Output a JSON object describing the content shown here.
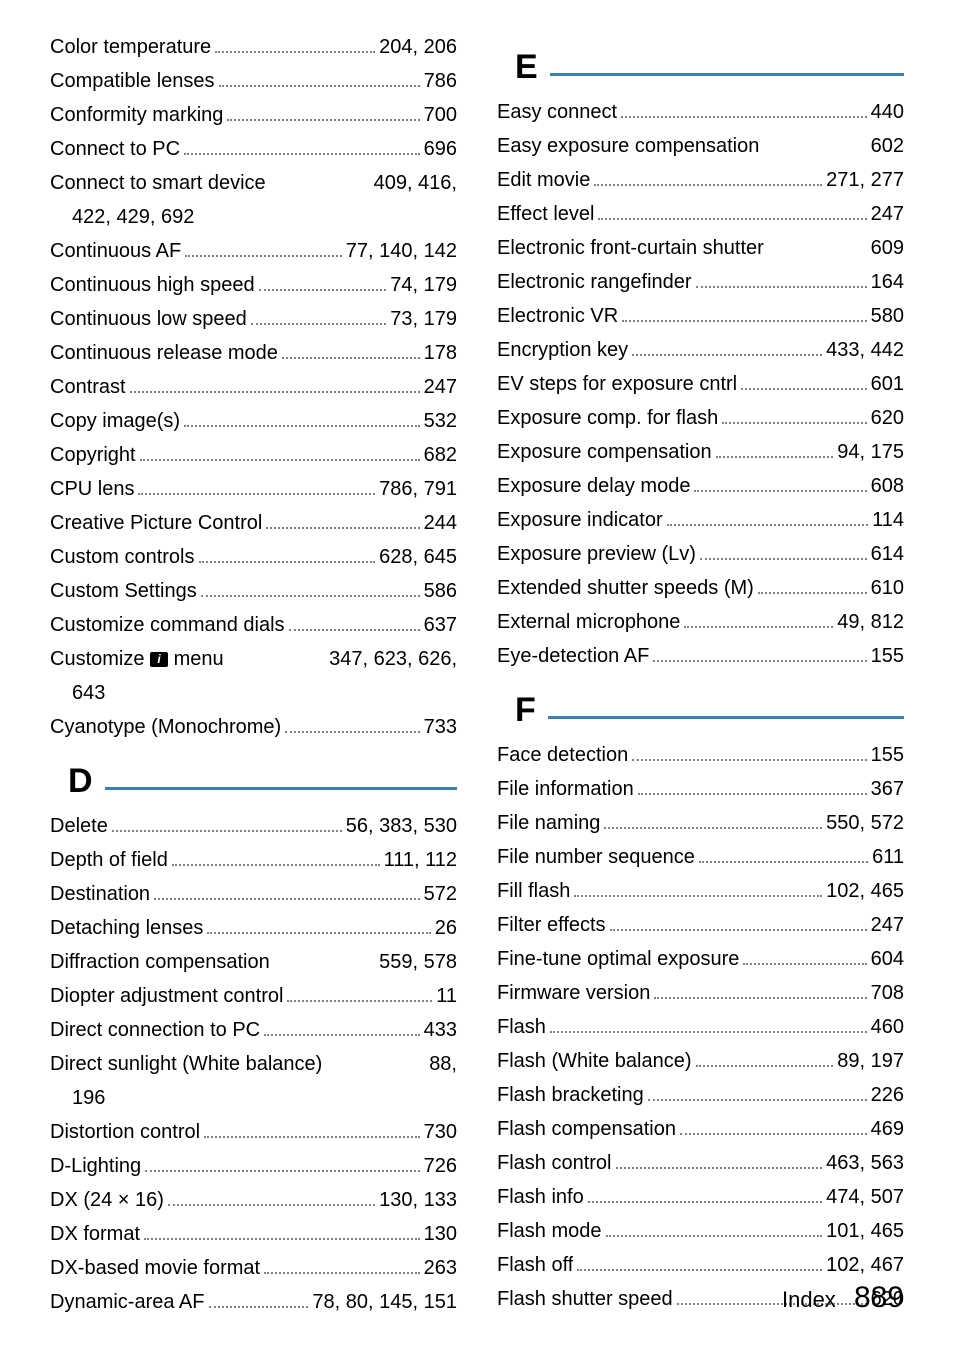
{
  "colors": {
    "line": "#3a7fb8",
    "text": "#000000",
    "dots": "#808080",
    "background": "#ffffff"
  },
  "typography": {
    "entry_fontsize": 20,
    "section_letter_fontsize": 34,
    "footer_label_fontsize": 22,
    "footer_page_fontsize": 30
  },
  "footer": {
    "label": "Index",
    "page": "889"
  },
  "left": {
    "initial": [
      {
        "label": "Color temperature",
        "pages": "204, 206"
      },
      {
        "label": "Compatible lenses",
        "pages": "786"
      },
      {
        "label": "Conformity marking",
        "pages": "700"
      },
      {
        "label": "Connect to PC",
        "pages": "696"
      },
      {
        "label": "Connect to smart device",
        "pages": "409, 416,",
        "nodots": true
      },
      {
        "cont": "422, 429, 692"
      },
      {
        "label": "Continuous AF",
        "pages": "77, 140, 142"
      },
      {
        "label": "Continuous high speed",
        "pages": "74, 179"
      },
      {
        "label": "Continuous low speed",
        "pages": "73, 179"
      },
      {
        "label": "Continuous release mode",
        "pages": "178"
      },
      {
        "label": "Contrast",
        "pages": "247"
      },
      {
        "label": "Copy image(s)",
        "pages": "532"
      },
      {
        "label": "Copyright",
        "pages": "682"
      },
      {
        "label": "CPU lens",
        "pages": "786, 791"
      },
      {
        "label": "Creative Picture Control",
        "pages": "244"
      },
      {
        "label": "Custom controls",
        "pages": "628, 645"
      },
      {
        "label": "Custom Settings",
        "pages": "586"
      },
      {
        "label": "Customize command dials",
        "pages": "637"
      },
      {
        "label": "Customize ICON menu",
        "pages": "347, 623, 626,",
        "nodots": true,
        "icon": true
      },
      {
        "cont": "643"
      },
      {
        "label": "Cyanotype (Monochrome)",
        "pages": "733"
      }
    ],
    "sections": [
      {
        "letter": "D",
        "entries": [
          {
            "label": "Delete",
            "pages": "56, 383, 530"
          },
          {
            "label": "Depth of field",
            "pages": "111, 112"
          },
          {
            "label": "Destination",
            "pages": "572"
          },
          {
            "label": "Detaching lenses",
            "pages": "26"
          },
          {
            "label": "Diffraction compensation",
            "pages": "559, 578",
            "nodots": true
          },
          {
            "label": "Diopter adjustment control",
            "pages": "11"
          },
          {
            "label": "Direct connection to PC",
            "pages": "433"
          },
          {
            "label": "Direct sunlight (White balance)",
            "pages": "88,",
            "nodots": true
          },
          {
            "cont": "196"
          },
          {
            "label": "Distortion control",
            "pages": "730"
          },
          {
            "label": "D-Lighting",
            "pages": "726"
          },
          {
            "label": "DX (24 × 16)",
            "pages": "130, 133"
          },
          {
            "label": "DX format",
            "pages": "130"
          },
          {
            "label": "DX-based movie format",
            "pages": "263"
          },
          {
            "label": "Dynamic-area AF",
            "pages": "78, 80, 145, 151"
          }
        ]
      }
    ]
  },
  "right": {
    "sections": [
      {
        "letter": "E",
        "entries": [
          {
            "label": "Easy connect",
            "pages": "440"
          },
          {
            "label": "Easy exposure compensation",
            "pages": "602",
            "nodots": true
          },
          {
            "label": "Edit movie",
            "pages": "271, 277"
          },
          {
            "label": "Effect level",
            "pages": "247"
          },
          {
            "label": "Electronic front-curtain shutter",
            "pages": "609",
            "nodots": true
          },
          {
            "label": "Electronic rangefinder",
            "pages": "164"
          },
          {
            "label": "Electronic VR",
            "pages": "580"
          },
          {
            "label": "Encryption key",
            "pages": "433, 442"
          },
          {
            "label": "EV steps for exposure cntrl",
            "pages": "601"
          },
          {
            "label": "Exposure comp. for flash",
            "pages": "620"
          },
          {
            "label": "Exposure compensation",
            "pages": "94, 175"
          },
          {
            "label": "Exposure delay mode",
            "pages": "608"
          },
          {
            "label": "Exposure indicator",
            "pages": "114"
          },
          {
            "label": "Exposure preview (Lv)",
            "pages": "614"
          },
          {
            "label": "Extended shutter speeds (M)",
            "pages": "610"
          },
          {
            "label": "External microphone",
            "pages": "49, 812"
          },
          {
            "label": "Eye-detection AF",
            "pages": "155"
          }
        ]
      },
      {
        "letter": "F",
        "entries": [
          {
            "label": "Face detection",
            "pages": "155"
          },
          {
            "label": "File information",
            "pages": "367"
          },
          {
            "label": "File naming",
            "pages": "550, 572"
          },
          {
            "label": "File number sequence",
            "pages": "611"
          },
          {
            "label": "Fill flash",
            "pages": "102, 465"
          },
          {
            "label": "Filter effects",
            "pages": "247"
          },
          {
            "label": "Fine-tune optimal exposure",
            "pages": "604"
          },
          {
            "label": "Firmware version",
            "pages": "708"
          },
          {
            "label": "Flash",
            "pages": "460"
          },
          {
            "label": "Flash (White balance)",
            "pages": "89, 197"
          },
          {
            "label": "Flash bracketing",
            "pages": "226"
          },
          {
            "label": "Flash compensation",
            "pages": "469"
          },
          {
            "label": "Flash control",
            "pages": "463, 563"
          },
          {
            "label": "Flash info",
            "pages": "474, 507"
          },
          {
            "label": "Flash mode",
            "pages": "101, 465"
          },
          {
            "label": "Flash off",
            "pages": "102, 467"
          },
          {
            "label": "Flash shutter speed",
            "pages": "620"
          }
        ]
      }
    ]
  }
}
